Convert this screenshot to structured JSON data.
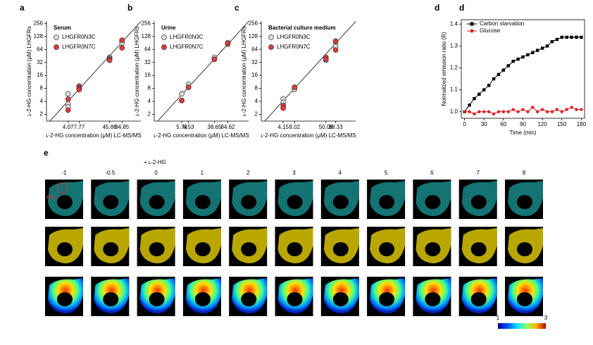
{
  "chart_data": [
    {
      "type": "scatter",
      "panel": "a",
      "legend_title": "Serum",
      "xlabel": "ʟ-2-HG concentration (μM) LC-MS/MS",
      "ylabel": "ʟ-2-HG concentration (μM) LHGFRs",
      "xscale": "log",
      "yscale": "log",
      "xlim": [
        1.15,
        285
      ],
      "ylim": [
        1.4,
        290
      ],
      "xticks": [
        4.07,
        7.77,
        45.88,
        94.85
      ],
      "yticks": [
        2,
        4,
        8,
        16,
        32,
        64,
        128,
        256
      ],
      "identity_line": true,
      "series": [
        {
          "name": "LHGFR0N3C",
          "color": "#dcdcdc",
          "x": [
            4.07,
            4.07,
            4.07,
            7.77,
            7.77,
            7.77,
            45.88,
            45.88,
            94.85,
            94.85
          ],
          "values": [
            6,
            3.5,
            3,
            9,
            8.5,
            8,
            42,
            40,
            95,
            90
          ]
        },
        {
          "name": "LHGFR0N7C",
          "color": "#e03a3a",
          "x": [
            4.07,
            4.07,
            7.77,
            7.77,
            7.77,
            45.88,
            45.88,
            94.85,
            94.85
          ],
          "values": [
            4.5,
            2.5,
            9,
            8,
            7.5,
            38,
            36,
            105,
            70
          ]
        }
      ]
    },
    {
      "type": "scatter",
      "panel": "b",
      "legend_title": "Urine",
      "xlabel": "ʟ-2-HG concentration (μM) LC-MS/MS",
      "ylabel": "ʟ-2-HG concentration (μM) LHGFRs",
      "xscale": "log",
      "yscale": "log",
      "xlim": [
        1.15,
        285
      ],
      "ylim": [
        1.4,
        290
      ],
      "xticks": [
        5.74,
        8.53,
        38.65,
        84.62
      ],
      "yticks": [
        2,
        4,
        8,
        16,
        32,
        64,
        128,
        256
      ],
      "identity_line": true,
      "series": [
        {
          "name": "LHGFR0N3C",
          "color": "#dcdcdc",
          "x": [
            5.74,
            5.74,
            8.53,
            8.53,
            38.65,
            38.65,
            84.62,
            84.62
          ],
          "values": [
            6,
            4.2,
            10,
            8.5,
            42,
            38,
            92,
            85
          ]
        },
        {
          "name": "LHGFR0N7C",
          "color": "#e03a3a",
          "x": [
            5.74,
            8.53,
            38.65,
            84.62
          ],
          "values": [
            4.2,
            8.5,
            38,
            88
          ]
        }
      ]
    },
    {
      "type": "scatter",
      "panel": "c",
      "legend_title": "Bacterial culture medium",
      "xlabel": "ʟ-2-HG concentration (μM) LC-MS/MS",
      "ylabel": "ʟ-2-HG concentration (μM) LHGFRs",
      "xscale": "log",
      "yscale": "log",
      "xlim": [
        1.15,
        285
      ],
      "ylim": [
        1.4,
        290
      ],
      "xticks": [
        4.15,
        8.02,
        50.08,
        88.33
      ],
      "yticks": [
        2,
        4,
        8,
        16,
        32,
        64,
        128,
        256
      ],
      "identity_line": true,
      "series": [
        {
          "name": "LHGFR0N3C",
          "color": "#dcdcdc",
          "x": [
            4.15,
            4.15,
            8.02,
            8.02,
            50.08,
            50.08,
            88.33,
            88.33
          ],
          "values": [
            4.6,
            3.8,
            8.5,
            7.5,
            40,
            36,
            88,
            75
          ]
        },
        {
          "name": "LHGFR0N7C",
          "color": "#e03a3a",
          "x": [
            4.15,
            4.15,
            8.02,
            50.08,
            50.08,
            88.33,
            88.33
          ],
          "values": [
            3.2,
            2.8,
            8.5,
            42,
            38,
            100,
            62
          ]
        }
      ]
    },
    {
      "type": "line",
      "panel": "d",
      "xlabel": "Time (min)",
      "ylabel": "Normalized emission ratio (R)",
      "xlim": [
        -5,
        185
      ],
      "ylim": [
        0.97,
        1.42
      ],
      "xticks": [
        0,
        30,
        60,
        90,
        120,
        150,
        180
      ],
      "yticks": [
        {
          "value": 1.0,
          "label": "1.0"
        },
        {
          "value": 1.1,
          "label": "1.1"
        },
        {
          "value": 1.2,
          "label": "1.2"
        },
        {
          "value": 1.3,
          "label": "1.3"
        },
        {
          "value": 1.4,
          "label": "1.4"
        }
      ],
      "legend": "upper left",
      "series": [
        {
          "name": "Carbon starvation",
          "color": "#000000",
          "marker": "square",
          "x": [
            0,
            7.5,
            15,
            22.5,
            30,
            37.5,
            45,
            52.5,
            60,
            67.5,
            75,
            82.5,
            90,
            97.5,
            105,
            112.5,
            120,
            127.5,
            135,
            142.5,
            150,
            157.5,
            165,
            172.5,
            180
          ],
          "values": [
            1.0,
            1.03,
            1.06,
            1.08,
            1.1,
            1.12,
            1.15,
            1.17,
            1.19,
            1.21,
            1.23,
            1.24,
            1.25,
            1.26,
            1.27,
            1.28,
            1.29,
            1.3,
            1.32,
            1.33,
            1.34,
            1.34,
            1.34,
            1.34,
            1.34
          ]
        },
        {
          "name": "Glucose",
          "color": "#e02020",
          "marker": "circle",
          "x": [
            0,
            7.5,
            15,
            22.5,
            30,
            37.5,
            45,
            52.5,
            60,
            67.5,
            75,
            82.5,
            90,
            97.5,
            105,
            112.5,
            120,
            127.5,
            135,
            142.5,
            150,
            157.5,
            165,
            172.5,
            180
          ],
          "values": [
            1.0,
            1.0,
            0.99,
            1.0,
            1.0,
            1.0,
            0.99,
            1.0,
            1.0,
            1.0,
            1.01,
            1.0,
            1.01,
            1.0,
            1.02,
            1.0,
            1.01,
            1.0,
            1.0,
            1.01,
            1.0,
            1.01,
            1.02,
            1.01,
            1.01
          ]
        }
      ]
    }
  ],
  "panel_e": {
    "panel": "e",
    "treatment": "+ ʟ-2-HG",
    "columns": [
      "-1",
      "-0.5",
      "0",
      "1",
      "2",
      "3",
      "4",
      "5",
      "6",
      "7",
      "8"
    ],
    "roi": "ROI",
    "colorbar_labels": [
      "1",
      "3"
    ]
  }
}
